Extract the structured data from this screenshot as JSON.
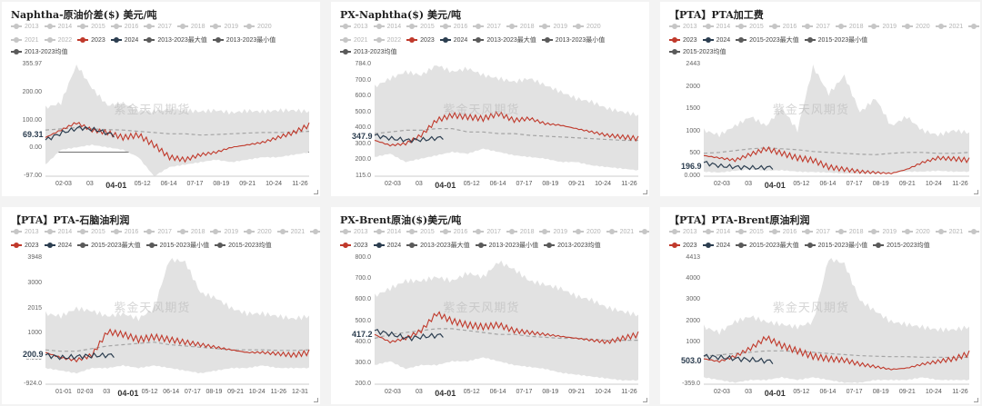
{
  "watermark": "紫金天风期货",
  "colors": {
    "c2023": "#c0392b",
    "c2024": "#2c3e50",
    "band": "#e2e2e2",
    "avg": "#a4a4a4",
    "hist": "#c6c6c6"
  },
  "chart_data": [
    {
      "type": "area",
      "title": "Naphtha-原油价差($) 美元/吨",
      "legend": [
        [
          "2013",
          "2014",
          "2015",
          "2016",
          "2017",
          "2018",
          "2019",
          "2020"
        ],
        [
          "2021",
          "2022",
          "2023",
          "2024",
          "2013-2023最大值",
          "2013-2023最小值"
        ],
        [
          "2013-2023均值"
        ]
      ],
      "yticks": [
        "355.97",
        "200.00",
        "100.00",
        "0.00",
        "-97.00"
      ],
      "ylim": [
        -97,
        356
      ],
      "xticks": [
        "02-03",
        "03",
        "04-01",
        "05-12",
        "06-14",
        "07-17",
        "08-19",
        "09-21",
        "10-24",
        "11-26"
      ],
      "current_label": "69.31",
      "series": [
        {
          "name": "2023-max",
          "values": [
            180,
            200,
            356,
            260,
            190,
            200,
            170,
            165,
            175,
            170,
            165,
            170,
            160,
            168,
            165,
            170,
            170,
            165
          ]
        },
        {
          "name": "2023-min",
          "values": [
            -50,
            10,
            20,
            30,
            20,
            10,
            -20,
            -97,
            -60,
            -50,
            -40,
            -30,
            -40,
            -30,
            -20,
            -20,
            -10,
            0
          ]
        },
        {
          "name": "2013-2023均值",
          "values": [
            90,
            95,
            100,
            95,
            92,
            90,
            85,
            80,
            75,
            75,
            70,
            72,
            75,
            78,
            80,
            80,
            82,
            85
          ]
        },
        {
          "name": "2023",
          "values": [
            60,
            90,
            120,
            90,
            80,
            60,
            70,
            30,
            -20,
            -30,
            -10,
            0,
            20,
            30,
            40,
            60,
            80,
            110
          ]
        },
        {
          "name": "2024",
          "values": [
            50,
            80,
            100,
            90,
            69.31
          ]
        }
      ]
    },
    {
      "type": "area",
      "title": "PX-Naphtha($) 美元/吨",
      "legend": [
        [
          "2013",
          "2014",
          "2015",
          "2016",
          "2017",
          "2018",
          "2019",
          "2020"
        ],
        [
          "2021",
          "2022",
          "2023",
          "2024",
          "2013-2023最大值",
          "2013-2023最小值"
        ],
        [
          "2013-2023均值"
        ]
      ],
      "yticks": [
        "784.0",
        "700.0",
        "600.0",
        "500.0",
        "400.0",
        "300.0",
        "200.0",
        "115.0"
      ],
      "ylim": [
        115,
        784
      ],
      "xticks": [
        "02-03",
        "03",
        "04-01",
        "05-12",
        "06-14",
        "07-17",
        "08-19",
        "09-21",
        "10-24",
        "11-26"
      ],
      "current_label": "347.9",
      "series": [
        {
          "name": "2023-max",
          "values": [
            650,
            700,
            740,
            720,
            780,
            740,
            760,
            720,
            700,
            680,
            700,
            660,
            620,
            580,
            560,
            520,
            500,
            480
          ]
        },
        {
          "name": "2023-min",
          "values": [
            230,
            250,
            200,
            220,
            240,
            260,
            250,
            280,
            260,
            240,
            230,
            220,
            200,
            200,
            180,
            170,
            160,
            150
          ]
        },
        {
          "name": "2013-2023均值",
          "values": [
            370,
            380,
            390,
            390,
            400,
            400,
            380,
            380,
            370,
            370,
            360,
            355,
            350,
            345,
            340,
            335,
            330,
            330
          ]
        },
        {
          "name": "2023",
          "values": [
            330,
            300,
            310,
            360,
            450,
            480,
            470,
            460,
            490,
            450,
            460,
            430,
            420,
            400,
            380,
            360,
            350,
            340
          ]
        },
        {
          "name": "2024",
          "values": [
            360,
            340,
            330,
            335,
            347.9
          ]
        }
      ]
    },
    {
      "type": "area",
      "title": "【PTA】PTA加工费",
      "legend": [
        [
          "2013",
          "2014",
          "2015",
          "2016",
          "2017",
          "2018",
          "2019",
          "2020",
          "2021",
          "2022"
        ],
        [
          "2023",
          "2024",
          "2015-2023最大值",
          "2015-2023最小值"
        ],
        [
          "2015-2023均值"
        ]
      ],
      "yticks": [
        "2443",
        "2000",
        "1500",
        "1000",
        "500",
        "0.000"
      ],
      "ylim": [
        0,
        2443
      ],
      "xticks": [
        "02-03",
        "03",
        "04-01",
        "05-12",
        "06-14",
        "07-17",
        "08-19",
        "09-21",
        "10-24",
        "11-26"
      ],
      "current_label": "196.9",
      "series": [
        {
          "name": "2023-max",
          "values": [
            1000,
            900,
            1100,
            1300,
            1100,
            1500,
            1000,
            2400,
            1800,
            2200,
            1400,
            1700,
            1100,
            1300,
            1000,
            900,
            1000,
            950
          ]
        },
        {
          "name": "2023-min",
          "values": [
            100,
            80,
            120,
            150,
            120,
            130,
            100,
            90,
            80,
            60,
            60,
            50,
            80,
            100,
            100,
            120,
            100,
            100
          ]
        },
        {
          "name": "2015-2023均值",
          "values": [
            500,
            520,
            560,
            600,
            620,
            600,
            580,
            540,
            520,
            500,
            480,
            470,
            500,
            520,
            520,
            500,
            500,
            520
          ]
        },
        {
          "name": "2023",
          "values": [
            450,
            400,
            350,
            480,
            600,
            500,
            400,
            350,
            200,
            150,
            100,
            80,
            60,
            150,
            300,
            400,
            380,
            350
          ]
        },
        {
          "name": "2024",
          "values": [
            300,
            220,
            200,
            180,
            196.9
          ]
        }
      ]
    },
    {
      "type": "area",
      "title": "【PTA】PTA-石脑油利润",
      "legend": [
        [
          "2013",
          "2014",
          "2015",
          "2016",
          "2017",
          "2018",
          "2019",
          "2020",
          "2021",
          "2022"
        ],
        [
          "2023",
          "2024",
          "2015-2023最大值",
          "2015-2023最小值",
          "2015-2023均值"
        ]
      ],
      "yticks": [
        "3948",
        "3000",
        "2015",
        "1000",
        "0.000",
        "-924.0"
      ],
      "ylim": [
        -924,
        3948
      ],
      "xticks": [
        "01-01",
        "02-03",
        "03",
        "04-01",
        "05-12",
        "06-14",
        "07-17",
        "08-19",
        "09-21",
        "10-24",
        "11-26",
        "12-31"
      ],
      "current_label": "200.9",
      "series": [
        {
          "name": "2023-max",
          "values": [
            1800,
            1700,
            2000,
            1900,
            1700,
            1800,
            1600,
            2000,
            3900,
            3800,
            2600,
            2400,
            2000,
            1800,
            1800,
            1700,
            1600,
            1700
          ]
        },
        {
          "name": "2023-min",
          "values": [
            -300,
            -400,
            -500,
            -300,
            -300,
            -200,
            -300,
            -200,
            -300,
            -400,
            -500,
            -400,
            -300,
            -300,
            -200,
            -300,
            -300,
            -300
          ]
        },
        {
          "name": "2015-2023均值",
          "values": [
            400,
            350,
            350,
            450,
            550,
            600,
            650,
            700,
            600,
            550,
            500,
            450,
            400,
            400,
            400,
            380,
            380,
            400
          ]
        },
        {
          "name": "2023",
          "values": [
            300,
            100,
            0,
            200,
            1100,
            1000,
            800,
            900,
            800,
            700,
            600,
            500,
            400,
            300,
            300,
            250,
            200,
            300
          ]
        },
        {
          "name": "2024",
          "values": [
            200,
            100,
            150,
            180,
            200.9
          ]
        }
      ]
    },
    {
      "type": "area",
      "title": "PX-Brent原油($)美元/吨",
      "legend": [
        [
          "2013",
          "2014",
          "2015",
          "2016",
          "2017",
          "2018",
          "2019",
          "2020",
          "2021",
          "2022"
        ],
        [
          "2023",
          "2024",
          "2013-2023最大值",
          "2013-2023最小值",
          "2013-2023均值"
        ]
      ],
      "yticks": [
        "800.0",
        "700.0",
        "600.0",
        "500.0",
        "400.0",
        "300.0",
        "200.0"
      ],
      "ylim": [
        160,
        820
      ],
      "xticks": [
        "02-03",
        "03",
        "04-01",
        "05-12",
        "06-14",
        "07-17",
        "08-19",
        "09-21",
        "10-24",
        "11-26"
      ],
      "current_label": "417.2",
      "series": [
        {
          "name": "2023-max",
          "values": [
            620,
            660,
            700,
            700,
            720,
            700,
            740,
            720,
            800,
            760,
            700,
            680,
            660,
            620,
            600,
            560,
            540,
            520
          ]
        },
        {
          "name": "2023-min",
          "values": [
            260,
            280,
            240,
            260,
            260,
            280,
            280,
            300,
            280,
            260,
            250,
            240,
            220,
            210,
            200,
            190,
            180,
            180
          ]
        },
        {
          "name": "2013-2023均值",
          "values": [
            400,
            420,
            430,
            440,
            450,
            450,
            440,
            430,
            420,
            420,
            410,
            405,
            400,
            400,
            395,
            390,
            390,
            390
          ]
        },
        {
          "name": "2023",
          "values": [
            420,
            380,
            400,
            440,
            530,
            490,
            470,
            460,
            470,
            440,
            430,
            420,
            410,
            400,
            390,
            380,
            400,
            420
          ]
        },
        {
          "name": "2024",
          "values": [
            440,
            420,
            400,
            410,
            417.2
          ]
        }
      ]
    },
    {
      "type": "area",
      "title": "【PTA】PTA-Brent原油利润",
      "legend": [
        [
          "2013",
          "2014",
          "2015",
          "2016",
          "2017",
          "2018",
          "2019",
          "2020",
          "2021",
          "2022"
        ],
        [
          "2023",
          "2024",
          "2015-2023最大值",
          "2015-2023最小值",
          "2015-2023均值"
        ]
      ],
      "yticks": [
        "4413",
        "4000",
        "3000",
        "2000",
        "1000",
        "0.000",
        "-359.0"
      ],
      "ylim": [
        -359,
        4413
      ],
      "xticks": [
        "02-03",
        "03",
        "04-01",
        "05-12",
        "06-14",
        "07-17",
        "08-19",
        "09-21",
        "10-24",
        "11-26"
      ],
      "current_label": "503.0",
      "series": [
        {
          "name": "2023-max",
          "values": [
            1800,
            1600,
            2000,
            2200,
            2000,
            1900,
            1800,
            2000,
            4400,
            4200,
            2800,
            2400,
            2000,
            1900,
            1800,
            1700,
            1700,
            1800
          ]
        },
        {
          "name": "2023-min",
          "values": [
            -100,
            -200,
            -300,
            -200,
            -200,
            -100,
            -200,
            -100,
            -200,
            -300,
            -300,
            -200,
            -200,
            -200,
            -100,
            -200,
            -200,
            -200
          ]
        },
        {
          "name": "2015-2023均值",
          "values": [
            700,
            750,
            800,
            850,
            900,
            900,
            880,
            850,
            800,
            760,
            720,
            700,
            680,
            680,
            660,
            660,
            650,
            660
          ]
        },
        {
          "name": "2023",
          "values": [
            600,
            500,
            700,
            1000,
            1400,
            1100,
            900,
            700,
            600,
            550,
            400,
            300,
            200,
            250,
            400,
            500,
            600,
            800
          ]
        },
        {
          "name": "2024",
          "values": [
            700,
            650,
            600,
            550,
            503.0
          ]
        }
      ]
    }
  ]
}
